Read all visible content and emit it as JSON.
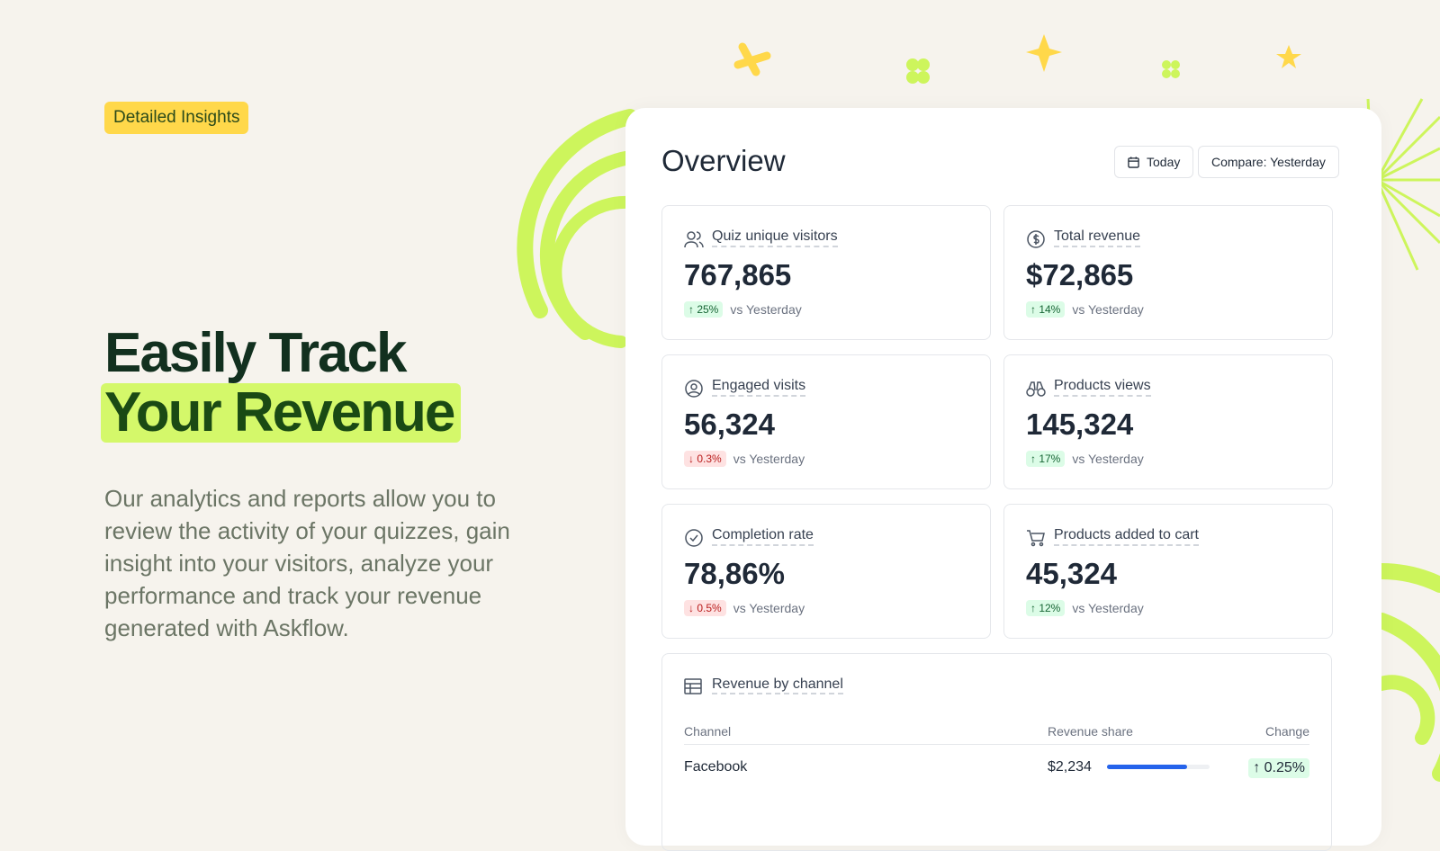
{
  "hero": {
    "badge": "Detailed Insights",
    "title_line1": "Easily Track",
    "title_line2": "Your Revenue",
    "description": "Our analytics and reports allow you to review the activity of your quizzes, gain insight into your visitors, analyze your performance and track your revenue generated with Askflow."
  },
  "overview": {
    "title": "Overview",
    "date_button": "Today",
    "compare_button": "Compare: Yesterday",
    "stats": [
      {
        "label": "Quiz unique visitors",
        "value": "767,865",
        "change": "↑ 25%",
        "trend": "up",
        "vs": "vs Yesterday",
        "icon": "users-icon"
      },
      {
        "label": "Total revenue",
        "value": "$72,865",
        "change": "↑ 14%",
        "trend": "up",
        "vs": "vs Yesterday",
        "icon": "dollar-icon"
      },
      {
        "label": "Engaged visits",
        "value": "56,324",
        "change": "↓ 0.3%",
        "trend": "down",
        "vs": "vs Yesterday",
        "icon": "user-circle-icon"
      },
      {
        "label": "Products views",
        "value": "145,324",
        "change": "↑ 17%",
        "trend": "up",
        "vs": "vs Yesterday",
        "icon": "binoculars-icon"
      },
      {
        "label": "Completion rate",
        "value": "78,86%",
        "change": "↓ 0.5%",
        "trend": "down",
        "vs": "vs Yesterday",
        "icon": "check-circle-icon"
      },
      {
        "label": "Products added to cart",
        "value": "45,324",
        "change": "↑ 12%",
        "trend": "up",
        "vs": "vs Yesterday",
        "icon": "cart-icon"
      }
    ],
    "revenue": {
      "title": "Revenue by channel",
      "columns": [
        "Channel",
        "Revenue share",
        "Change"
      ],
      "rows": [
        {
          "channel": "Facebook",
          "amount": "$2,234",
          "share_pct": 78,
          "change": "↑ 0.25%"
        }
      ]
    }
  },
  "colors": {
    "accent": "#d4f86a",
    "badge": "#ffd84a",
    "bar": "#2563eb"
  }
}
